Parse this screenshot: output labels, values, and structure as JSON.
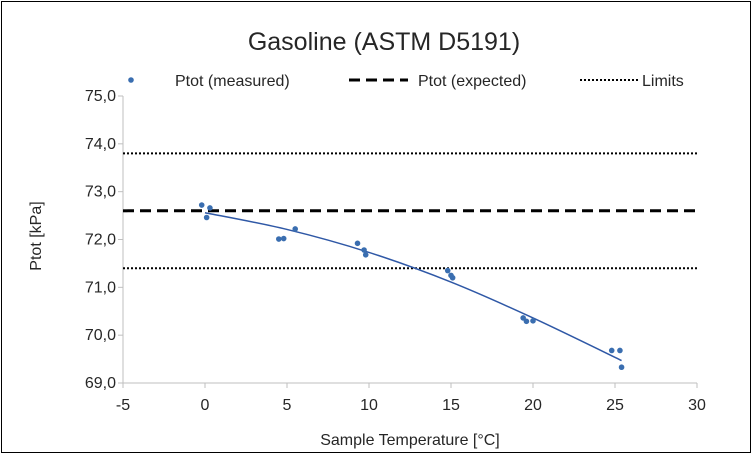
{
  "chart_data": {
    "type": "scatter",
    "title": "Gasoline (ASTM D5191)",
    "xlabel": "Sample Temperature [°C]",
    "ylabel": "Ptot [kPa]",
    "xlim": [
      -5,
      30
    ],
    "ylim": [
      69.0,
      75.0
    ],
    "x_ticks": [
      -5,
      0,
      5,
      10,
      15,
      20,
      25,
      30
    ],
    "y_ticks": [
      "69,0",
      "70,0",
      "71,0",
      "72,0",
      "73,0",
      "74,0",
      "75,0"
    ],
    "x_tick_labels": [
      "-5",
      "0",
      "5",
      "10",
      "15",
      "20",
      "25",
      "30"
    ],
    "grid": false,
    "legend_position": "top",
    "legend": [
      {
        "name": "Ptot (measured)",
        "style": "marker",
        "color": "#3a6eb0"
      },
      {
        "name": "Ptot (expected)",
        "style": "dashed",
        "color": "#000000"
      },
      {
        "name": "Limits",
        "style": "dotted",
        "color": "#000000"
      }
    ],
    "series": [
      {
        "name": "Ptot (measured)",
        "style": "marker",
        "color": "#3a6eb0",
        "points": [
          [
            -0.2,
            72.72
          ],
          [
            0.1,
            72.46
          ],
          [
            0.3,
            72.66
          ],
          [
            4.5,
            72.01
          ],
          [
            4.8,
            72.02
          ],
          [
            5.5,
            72.22
          ],
          [
            9.3,
            71.92
          ],
          [
            9.7,
            71.78
          ],
          [
            9.8,
            71.68
          ],
          [
            14.8,
            71.35
          ],
          [
            15.0,
            71.25
          ],
          [
            15.1,
            71.2
          ],
          [
            19.4,
            70.36
          ],
          [
            19.6,
            70.29
          ],
          [
            20.0,
            70.3
          ],
          [
            24.8,
            69.68
          ],
          [
            25.3,
            69.68
          ],
          [
            25.4,
            69.33
          ]
        ]
      },
      {
        "name": "Ptot (expected)",
        "style": "dashed",
        "color": "#000000",
        "y": 72.6
      },
      {
        "name": "Limits",
        "style": "dotted",
        "color": "#000000",
        "y": [
          73.8,
          71.4
        ]
      },
      {
        "name": "trendline",
        "style": "line",
        "color": "#2f58a6",
        "points": [
          [
            0,
            72.56
          ],
          [
            5,
            72.21
          ],
          [
            10,
            71.73
          ],
          [
            15,
            71.11
          ],
          [
            20,
            70.36
          ],
          [
            25.4,
            69.47
          ]
        ]
      }
    ]
  }
}
